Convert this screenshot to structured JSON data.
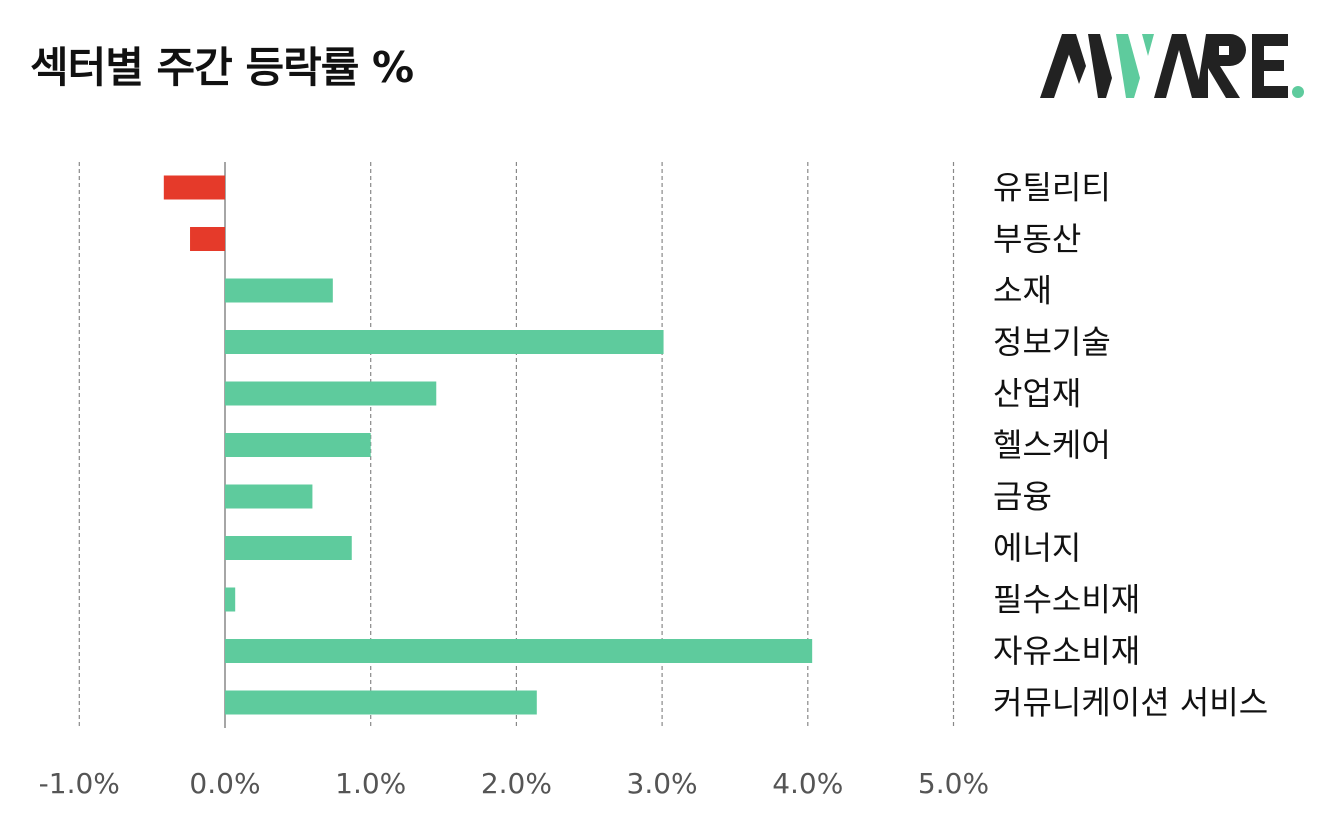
{
  "header": {
    "title": "섹터별 주간 등락률 %"
  },
  "logo": {
    "text": "AWARE",
    "colors": {
      "dark": "#222222",
      "accent": "#5ecb9d"
    }
  },
  "colors": {
    "positive": "#5ecb9d",
    "negative": "#e53a2a",
    "grid": "#888888",
    "axis": "#888888"
  },
  "chart_data": {
    "type": "bar",
    "orientation": "horizontal",
    "categories": [
      "유틸리티",
      "부동산",
      "소재",
      "정보기술",
      "산업재",
      "헬스케어",
      "금융",
      "에너지",
      "필수소비재",
      "자유소비재",
      "커뮤니케이션 서비스"
    ],
    "values": [
      -0.42,
      -0.24,
      0.74,
      3.01,
      1.45,
      1.0,
      0.6,
      0.87,
      0.07,
      4.03,
      2.14
    ],
    "xticks": [
      "-1.0%",
      "0.0%",
      "1.0%",
      "2.0%",
      "3.0%",
      "4.0%",
      "5.0%"
    ],
    "tick_values": [
      -1,
      0,
      1,
      2,
      3,
      4,
      5
    ],
    "xlim": [
      -1,
      5
    ],
    "grid": "vertical-dashed",
    "label_position": "right"
  }
}
